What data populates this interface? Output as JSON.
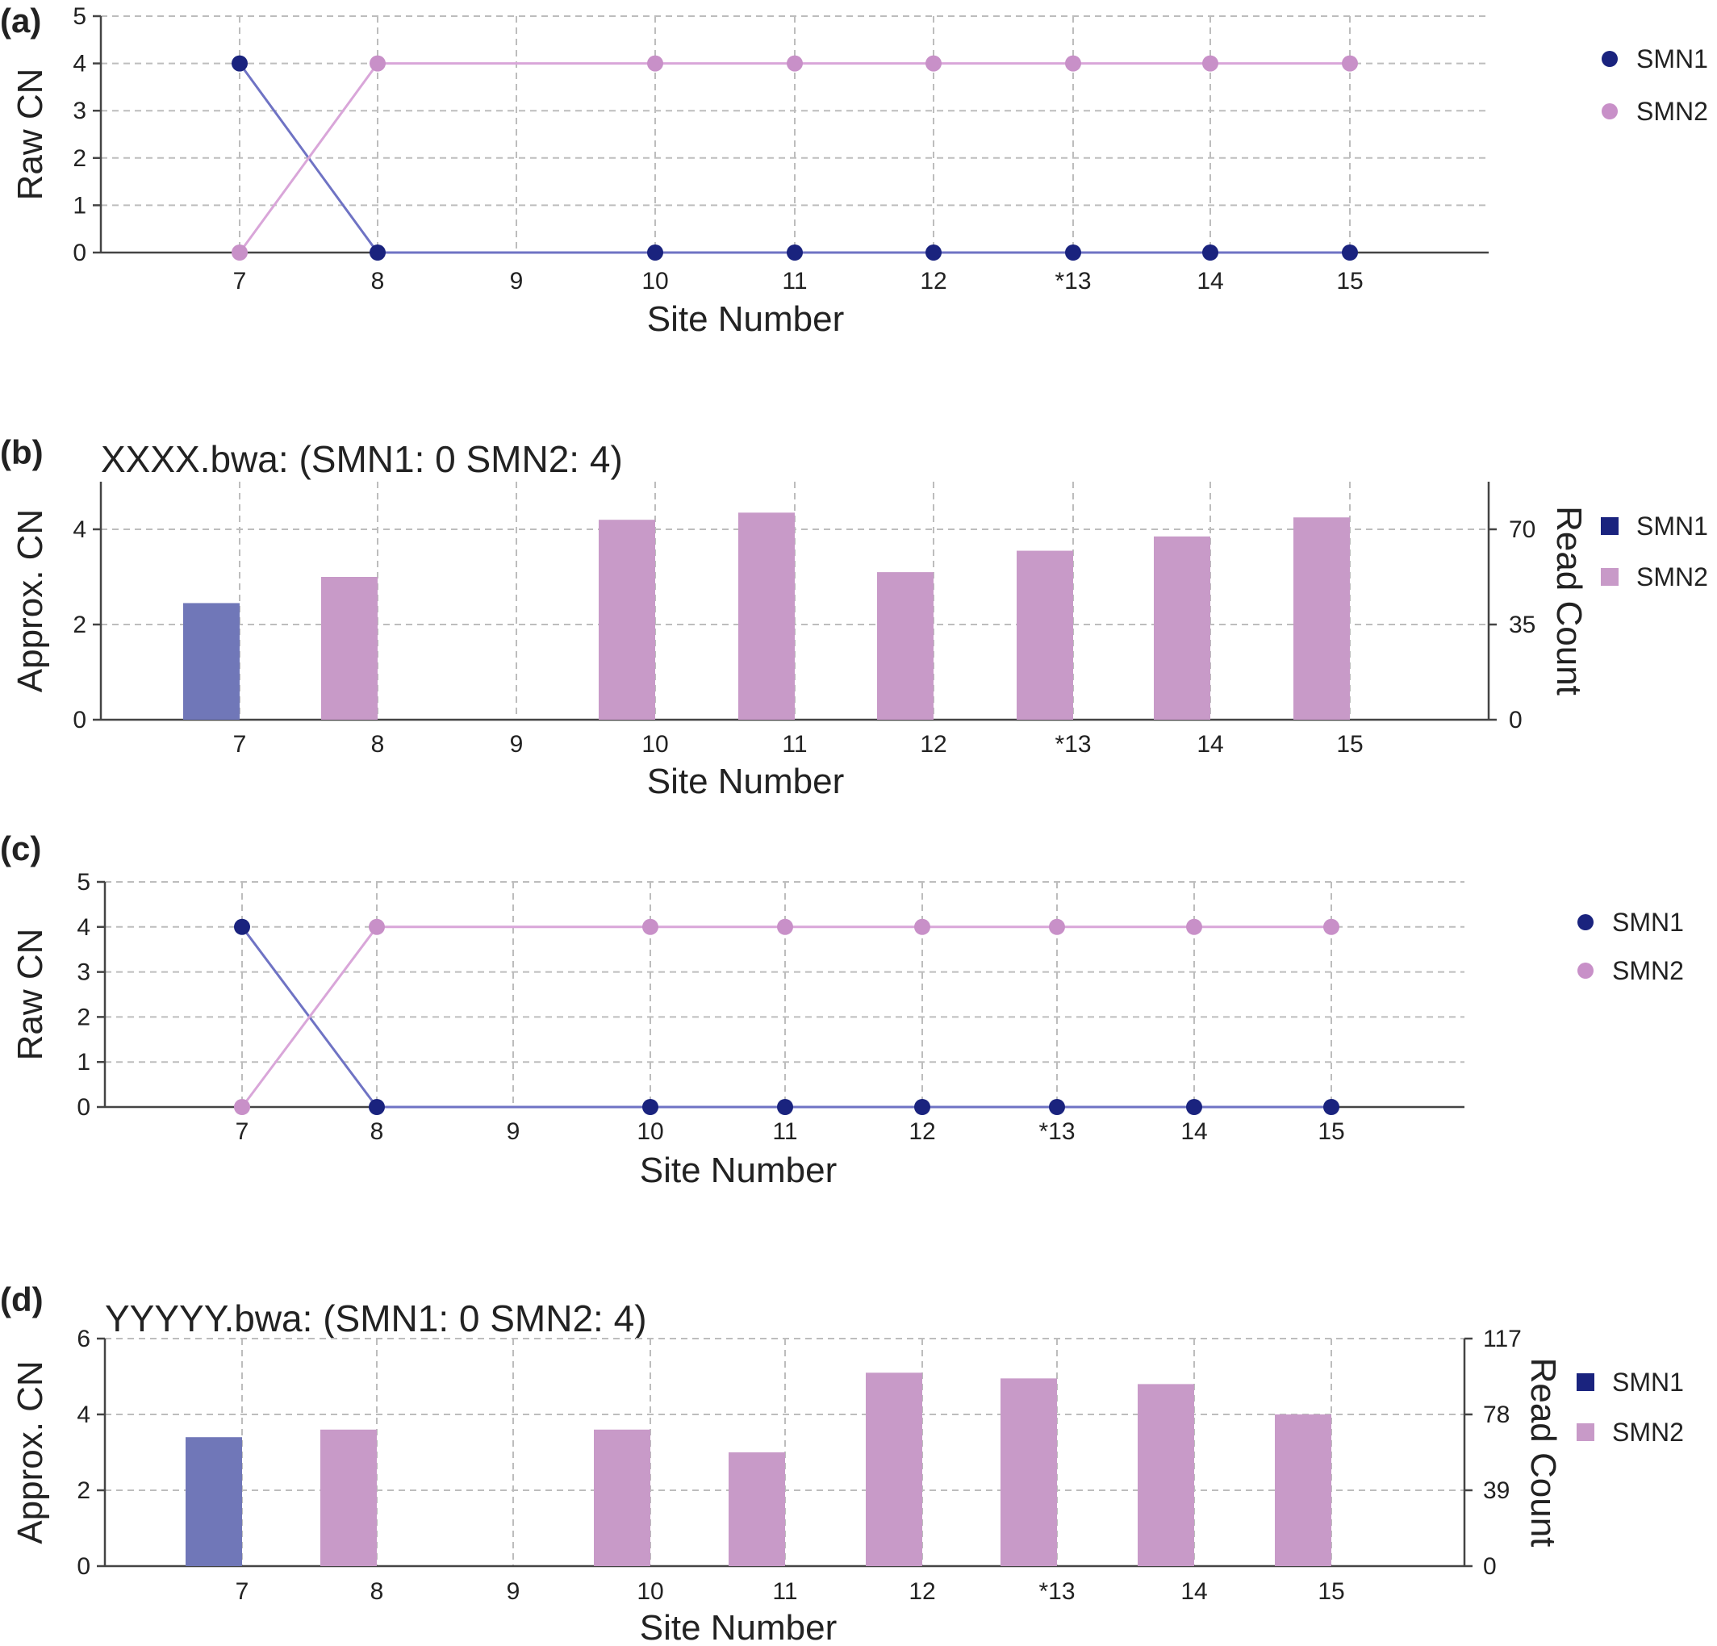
{
  "colors": {
    "smn1": "#1a237e",
    "smn2": "#c890c8",
    "smn1_bar": "#7077b8",
    "smn2_bar": "#c89ac8"
  },
  "chart_data": [
    {
      "panel": "(a)",
      "type": "line",
      "title": "",
      "xlabel": "Site Number",
      "ylabel": "Raw CN",
      "categories": [
        "7",
        "8",
        "9",
        "10",
        "11",
        "12",
        "*13",
        "14",
        "15"
      ],
      "ylim": [
        0,
        5
      ],
      "yticks": [
        "0",
        "1",
        "2",
        "3",
        "4",
        "5"
      ],
      "grid": true,
      "legend": "right",
      "series": [
        {
          "name": "SMN1",
          "values": [
            4,
            0,
            null,
            0,
            0,
            0,
            0,
            0,
            0
          ]
        },
        {
          "name": "SMN2",
          "values": [
            0,
            4,
            null,
            4,
            4,
            4,
            4,
            4,
            4
          ]
        }
      ]
    },
    {
      "panel": "(b)",
      "type": "bar",
      "title": "XXXX.bwa: (SMN1: 0 SMN2: 4)",
      "xlabel": "Site Number",
      "ylabel": "Approx. CN",
      "y2label": "Read Count",
      "categories": [
        "7",
        "8",
        "9",
        "10",
        "11",
        "12",
        "*13",
        "14",
        "15"
      ],
      "ylim": [
        0,
        5
      ],
      "yticks": [
        "0",
        "2",
        "4"
      ],
      "y2ticks": [
        "0",
        "35",
        "70"
      ],
      "grid": true,
      "legend": "right",
      "series": [
        {
          "name": "SMN1",
          "values": [
            2.45,
            0,
            0,
            0,
            0,
            0,
            0,
            0,
            0
          ]
        },
        {
          "name": "SMN2",
          "values": [
            0,
            3.0,
            0,
            4.2,
            4.35,
            3.1,
            3.55,
            3.85,
            4.25
          ]
        }
      ]
    },
    {
      "panel": "(c)",
      "type": "line",
      "title": "",
      "xlabel": "Site Number",
      "ylabel": "Raw CN",
      "categories": [
        "7",
        "8",
        "9",
        "10",
        "11",
        "12",
        "*13",
        "14",
        "15"
      ],
      "ylim": [
        0,
        5
      ],
      "yticks": [
        "0",
        "1",
        "2",
        "3",
        "4",
        "5"
      ],
      "grid": true,
      "legend": "right",
      "series": [
        {
          "name": "SMN1",
          "values": [
            4,
            0,
            null,
            0,
            0,
            0,
            0,
            0,
            0
          ]
        },
        {
          "name": "SMN2",
          "values": [
            0,
            4,
            null,
            4,
            4,
            4,
            4,
            4,
            4
          ]
        }
      ]
    },
    {
      "panel": "(d)",
      "type": "bar",
      "title": "YYYYY.bwa: (SMN1: 0 SMN2: 4)",
      "xlabel": "Site Number",
      "ylabel": "Approx. CN",
      "y2label": "Read Count",
      "categories": [
        "7",
        "8",
        "9",
        "10",
        "11",
        "12",
        "*13",
        "14",
        "15"
      ],
      "ylim": [
        0,
        6
      ],
      "yticks": [
        "0",
        "2",
        "4",
        "6"
      ],
      "y2ticks": [
        "0",
        "39",
        "78",
        "117"
      ],
      "grid": true,
      "legend": "right",
      "series": [
        {
          "name": "SMN1",
          "values": [
            3.4,
            0,
            0,
            0,
            0,
            0,
            0,
            0,
            0
          ]
        },
        {
          "name": "SMN2",
          "values": [
            0,
            3.6,
            0,
            3.6,
            3.0,
            5.1,
            4.95,
            4.8,
            4.0
          ]
        }
      ]
    }
  ]
}
